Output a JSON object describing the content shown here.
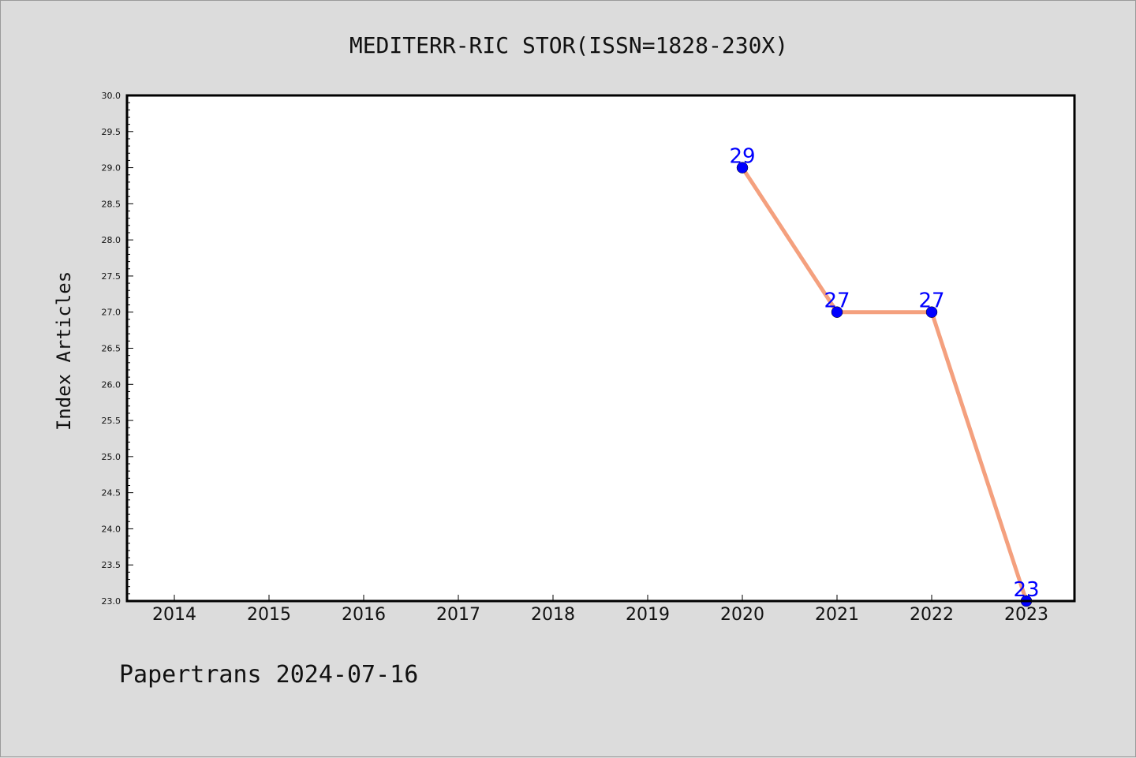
{
  "footer": {
    "text": "Papertrans 2024-07-16"
  },
  "chart_data": {
    "type": "line",
    "title": "MEDITERR-RIC STOR(ISSN=1828-230X)",
    "xlabel": "",
    "ylabel": "Index Articles",
    "categories": [
      "2014",
      "2015",
      "2016",
      "2017",
      "2018",
      "2019",
      "2020",
      "2021",
      "2022",
      "2023"
    ],
    "ylim": [
      23.0,
      30.0
    ],
    "yticks": [
      "23.0",
      "23.5",
      "24.0",
      "24.5",
      "25.0",
      "25.5",
      "26.0",
      "26.5",
      "27.0",
      "27.5",
      "28.0",
      "28.5",
      "29.0",
      "29.5",
      "30.0"
    ],
    "series": [
      {
        "x": [
          "2020",
          "2021",
          "2022",
          "2023"
        ],
        "values": [
          29,
          27,
          27,
          23
        ],
        "labels": [
          "29",
          "27",
          "27",
          "23"
        ]
      }
    ],
    "line_color": "#f4a07e",
    "marker_color": "#0000ff",
    "label_color": "#0000ff",
    "grid": false
  }
}
